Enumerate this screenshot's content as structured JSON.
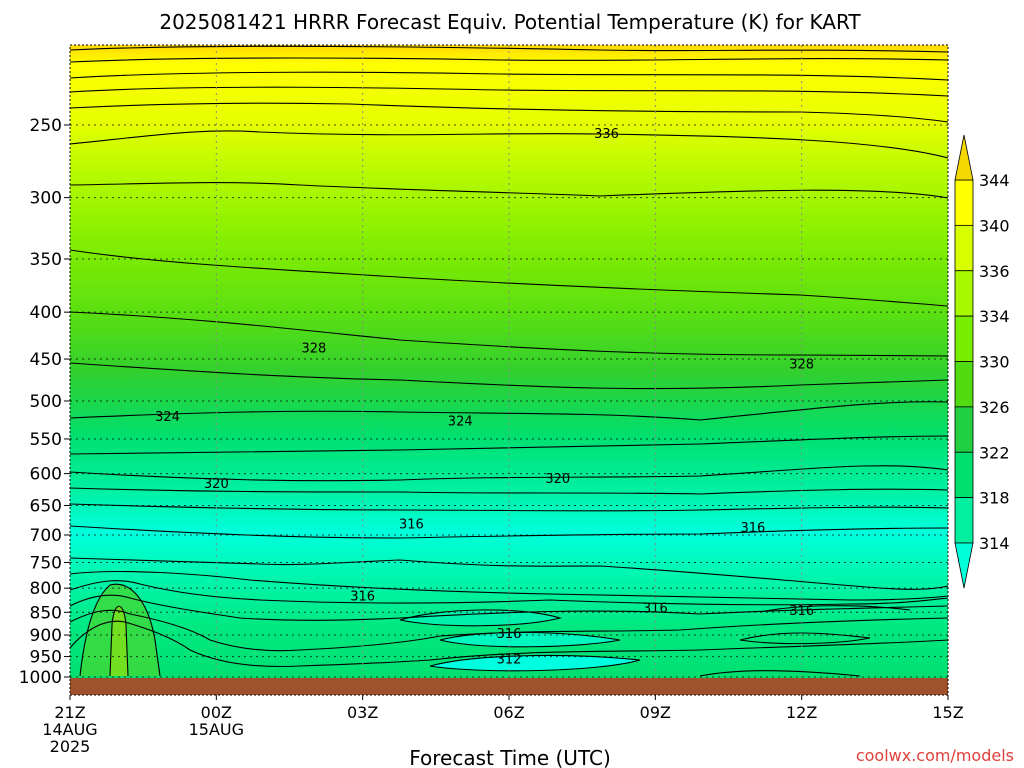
{
  "chart_data": {
    "type": "contour",
    "title": "2025081421 HRRR Forecast Equiv. Potential Temperature (K) for KART",
    "xlabel": "Forecast Time (UTC)",
    "ylabel": "",
    "credit": "coolwx.com/models",
    "x_ticks": [
      {
        "hours": 0,
        "line1": "21Z",
        "line2": "14AUG",
        "line3": "2025"
      },
      {
        "hours": 3,
        "line1": "00Z",
        "line2": "15AUG",
        "line3": ""
      },
      {
        "hours": 6,
        "line1": "03Z",
        "line2": "",
        "line3": ""
      },
      {
        "hours": 9,
        "line1": "06Z",
        "line2": "",
        "line3": ""
      },
      {
        "hours": 12,
        "line1": "09Z",
        "line2": "",
        "line3": ""
      },
      {
        "hours": 15,
        "line1": "12Z",
        "line2": "",
        "line3": ""
      },
      {
        "hours": 18,
        "line1": "15Z",
        "line2": "",
        "line3": ""
      }
    ],
    "xlim": [
      0,
      18
    ],
    "y_ticks": [
      250,
      300,
      350,
      400,
      450,
      500,
      550,
      600,
      650,
      700,
      750,
      800,
      850,
      900,
      950,
      1000
    ],
    "y_scale": "log",
    "ylim": [
      1000,
      200
    ],
    "grid": true,
    "colorbar": {
      "levels": [
        314,
        318,
        322,
        326,
        330,
        334,
        336,
        340,
        344
      ],
      "colors": [
        "#00ffd8",
        "#00f0a0",
        "#00e070",
        "#20d040",
        "#50dc10",
        "#78ee00",
        "#a8f800",
        "#d8ff00",
        "#ffff00",
        "#f5d800"
      ]
    },
    "contour_labels": [
      {
        "text": "336",
        "hours": 11.0,
        "pressure": 255
      },
      {
        "text": "328",
        "hours": 5.0,
        "pressure": 437
      },
      {
        "text": "328",
        "hours": 15.0,
        "pressure": 455
      },
      {
        "text": "324",
        "hours": 2.0,
        "pressure": 519
      },
      {
        "text": "324",
        "hours": 8.0,
        "pressure": 525
      },
      {
        "text": "320",
        "hours": 3.0,
        "pressure": 614
      },
      {
        "text": "320",
        "hours": 10.0,
        "pressure": 607
      },
      {
        "text": "316",
        "hours": 7.0,
        "pressure": 680
      },
      {
        "text": "316",
        "hours": 14.0,
        "pressure": 686
      },
      {
        "text": "316",
        "hours": 6.0,
        "pressure": 815
      },
      {
        "text": "316",
        "hours": 12.0,
        "pressure": 840
      },
      {
        "text": "316",
        "hours": 15.0,
        "pressure": 845
      },
      {
        "text": "316",
        "hours": 9.0,
        "pressure": 895
      },
      {
        "text": "312",
        "hours": 9.0,
        "pressure": 955
      }
    ],
    "terrain_pressure": 1005
  }
}
